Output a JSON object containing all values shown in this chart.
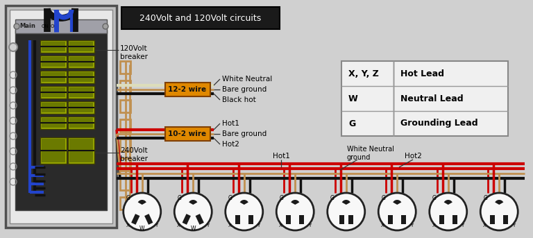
{
  "bg_color": "#d0d0d0",
  "header_box_color": "#1a1a1a",
  "header_text": "240Volt and 120Volt circuits",
  "header_text_color": "#ffffff",
  "legend_rows": [
    [
      "X, Y, Z",
      "Hot Lead"
    ],
    [
      "W",
      "Neutral Lead"
    ],
    [
      "G",
      "Grounding Lead"
    ]
  ],
  "label_120v": "120Volt\nbreaker",
  "label_240v": "240Volt\nbreaker",
  "label_12_2": "12-2 wire",
  "label_10_2": "10-2 wire",
  "wire_labels_12_2": [
    "White Neutral",
    "Bare ground",
    "Black hot"
  ],
  "wire_labels_10_2": [
    "Hot1",
    "Bare ground",
    "Hot2"
  ],
  "bottom_labels": [
    "Hot1",
    "White Neutral\nground",
    "Hot2"
  ],
  "outlet_count": 8,
  "wire_colors": {
    "red": "#cc0000",
    "black": "#111111",
    "white_wire": "#ddddbb",
    "bare": "#c09050",
    "blue": "#2244cc",
    "olive": "#6b7a00",
    "olive_light": "#9aaa00",
    "orange": "#e08800",
    "panel_dark": "#2a2a2a",
    "panel_light": "#d8d8d8",
    "panel_mid": "#b8b8b8"
  }
}
